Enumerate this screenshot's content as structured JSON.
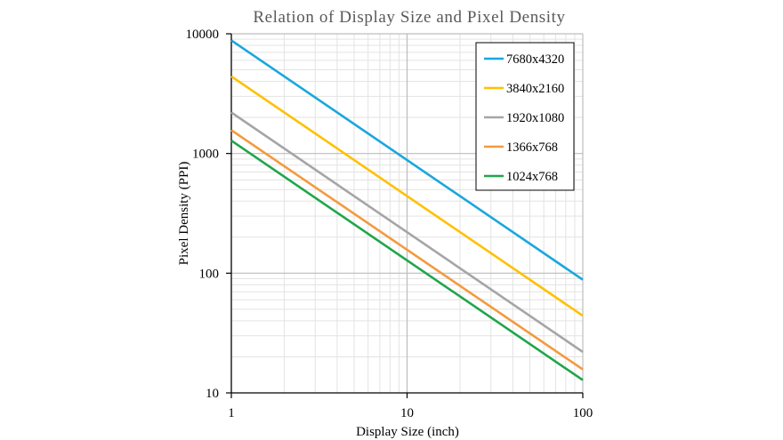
{
  "chart_data": {
    "type": "line",
    "title": "Relation of Display Size and Pixel Density",
    "xlabel": "Display Size (inch)",
    "ylabel": "Pixel Density (PPI)",
    "x_scale": "log",
    "y_scale": "log",
    "xlim": [
      1,
      100
    ],
    "ylim": [
      10,
      10000
    ],
    "x_ticks": [
      "1",
      "10",
      "100"
    ],
    "y_ticks": [
      "10",
      "100",
      "1000",
      "10000"
    ],
    "grid": true,
    "legend_position": "top-right",
    "x": [
      1,
      100
    ],
    "series": [
      {
        "name": "7680x4320",
        "color": "#1AA7DC",
        "values": [
          8811,
          88.1
        ]
      },
      {
        "name": "3840x2160",
        "color": "#FFC000",
        "values": [
          4406,
          44.1
        ]
      },
      {
        "name": "1920x1080",
        "color": "#A5A5A5",
        "values": [
          2203,
          22.0
        ]
      },
      {
        "name": "1366x768",
        "color": "#F39A3D",
        "values": [
          1567,
          15.7
        ]
      },
      {
        "name": "1024x768",
        "color": "#1FA64A",
        "values": [
          1280,
          12.8
        ]
      }
    ]
  }
}
